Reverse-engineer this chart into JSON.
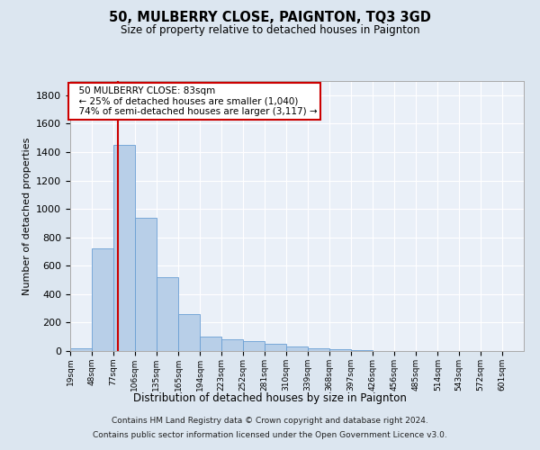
{
  "title": "50, MULBERRY CLOSE, PAIGNTON, TQ3 3GD",
  "subtitle": "Size of property relative to detached houses in Paignton",
  "xlabel": "Distribution of detached houses by size in Paignton",
  "ylabel": "Number of detached properties",
  "footer_line1": "Contains HM Land Registry data © Crown copyright and database right 2024.",
  "footer_line2": "Contains public sector information licensed under the Open Government Licence v3.0.",
  "bar_color": "#b8cfe8",
  "bar_edge_color": "#6a9fd4",
  "background_color": "#dce6f0",
  "plot_bg_color": "#eaf0f8",
  "grid_color": "#ffffff",
  "annotation_box_color": "#cc0000",
  "annotation_text": "  50 MULBERRY CLOSE: 83sqm\n  ← 25% of detached houses are smaller (1,040)\n  74% of semi-detached houses are larger (3,117) →",
  "red_line_x": 83,
  "red_line_color": "#cc0000",
  "categories": [
    "19sqm",
    "48sqm",
    "77sqm",
    "106sqm",
    "135sqm",
    "165sqm",
    "194sqm",
    "223sqm",
    "252sqm",
    "281sqm",
    "310sqm",
    "339sqm",
    "368sqm",
    "397sqm",
    "426sqm",
    "456sqm",
    "485sqm",
    "514sqm",
    "543sqm",
    "572sqm",
    "601sqm"
  ],
  "bin_edges": [
    19,
    48,
    77,
    106,
    135,
    165,
    194,
    223,
    252,
    281,
    310,
    339,
    368,
    397,
    426,
    456,
    485,
    514,
    543,
    572,
    601,
    630
  ],
  "values": [
    20,
    720,
    1450,
    940,
    520,
    260,
    100,
    82,
    68,
    50,
    30,
    20,
    15,
    5,
    3,
    2,
    2,
    2,
    0,
    0,
    2
  ],
  "ylim": [
    0,
    1900
  ],
  "yticks": [
    0,
    200,
    400,
    600,
    800,
    1000,
    1200,
    1400,
    1600,
    1800
  ]
}
